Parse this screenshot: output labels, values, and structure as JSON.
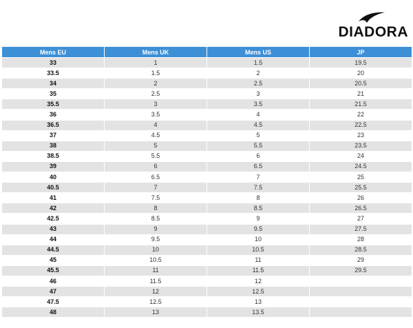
{
  "brand": {
    "name": "DIADORA"
  },
  "table": {
    "headers": [
      "Mens EU",
      "Mens UK",
      "Mens US",
      "JP"
    ],
    "rows": [
      [
        "33",
        "1",
        "1.5",
        "19.5"
      ],
      [
        "33.5",
        "1.5",
        "2",
        "20"
      ],
      [
        "34",
        "2",
        "2.5",
        "20.5"
      ],
      [
        "35",
        "2.5",
        "3",
        "21"
      ],
      [
        "35.5",
        "3",
        "3.5",
        "21.5"
      ],
      [
        "36",
        "3.5",
        "4",
        "22"
      ],
      [
        "36.5",
        "4",
        "4.5",
        "22.5"
      ],
      [
        "37",
        "4.5",
        "5",
        "23"
      ],
      [
        "38",
        "5",
        "5.5",
        "23.5"
      ],
      [
        "38.5",
        "5.5",
        "6",
        "24"
      ],
      [
        "39",
        "6",
        "6.5",
        "24.5"
      ],
      [
        "40",
        "6.5",
        "7",
        "25"
      ],
      [
        "40.5",
        "7",
        "7.5",
        "25.5"
      ],
      [
        "41",
        "7.5",
        "8",
        "26"
      ],
      [
        "42",
        "8",
        "8.5",
        "26.5"
      ],
      [
        "42.5",
        "8.5",
        "9",
        "27"
      ],
      [
        "43",
        "9",
        "9.5",
        "27.5"
      ],
      [
        "44",
        "9.5",
        "10",
        "28"
      ],
      [
        "44.5",
        "10",
        "10.5",
        "28.5"
      ],
      [
        "45",
        "10.5",
        "11",
        "29"
      ],
      [
        "45.5",
        "11",
        "11.5",
        "29.5"
      ],
      [
        "46",
        "11.5",
        "12",
        ""
      ],
      [
        "47",
        "12",
        "12.5",
        ""
      ],
      [
        "47.5",
        "12.5",
        "13",
        ""
      ],
      [
        "48",
        "13",
        "13.5",
        ""
      ]
    ]
  }
}
